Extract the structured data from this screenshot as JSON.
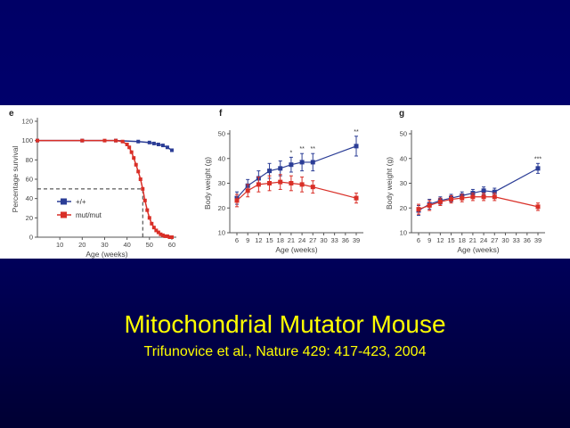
{
  "slide": {
    "title": "Mitochondrial Mutator Mouse",
    "subtitle": "Trifunovice et al., Nature 429: 417-423, 2004"
  },
  "colors": {
    "wildtype": "#2b3d96",
    "mutant": "#d92f27",
    "title": "#ffff00"
  },
  "chart_data": [
    {
      "panel": "e",
      "type": "line",
      "xlabel": "Age (weeks)",
      "ylabel": "Percentage survival",
      "xlim": [
        0,
        62
      ],
      "ylim": [
        0,
        120
      ],
      "xticks": [
        10,
        20,
        30,
        40,
        50,
        60
      ],
      "yticks": [
        0,
        20,
        40,
        60,
        80,
        100,
        120
      ],
      "legend_position": "bottom-left",
      "reference_line": {
        "y": 50,
        "x_at": 47
      },
      "series": [
        {
          "name": "+/+",
          "color": "#2b3d96",
          "x": [
            0,
            20,
            35,
            45,
            50,
            52,
            54,
            56,
            58,
            60
          ],
          "y": [
            100,
            100,
            100,
            99,
            98,
            97,
            96,
            95,
            93,
            90
          ]
        },
        {
          "name": "mut/mut",
          "color": "#d92f27",
          "x": [
            0,
            20,
            30,
            35,
            38,
            40,
            41,
            42,
            43,
            44,
            45,
            46,
            47,
            48,
            49,
            50,
            51,
            52,
            53,
            54,
            55,
            56,
            57,
            58,
            59,
            60
          ],
          "y": [
            100,
            100,
            100,
            100,
            99,
            96,
            93,
            88,
            82,
            75,
            68,
            60,
            50,
            38,
            28,
            20,
            14,
            10,
            7,
            5,
            3,
            2,
            1,
            1,
            0,
            0
          ]
        }
      ]
    },
    {
      "panel": "f",
      "type": "line",
      "xlabel": "Age (weeks)",
      "ylabel": "Body weight  (g)",
      "categories": [
        "6",
        "9",
        "12",
        "15",
        "18",
        "21",
        "24",
        "27",
        "30",
        "33",
        "36",
        "39"
      ],
      "ylim": [
        10,
        50
      ],
      "yticks": [
        10,
        20,
        30,
        40,
        50
      ],
      "annotations": [
        {
          "x": "21",
          "text": "*"
        },
        {
          "x": "24",
          "text": "**"
        },
        {
          "x": "27",
          "text": "**"
        },
        {
          "x": "39",
          "text": "**"
        }
      ],
      "series": [
        {
          "name": "",
          "color": "#2b3d96",
          "x": [
            "6",
            "9",
            "12",
            "15",
            "18",
            "21",
            "24",
            "27",
            "39"
          ],
          "y": [
            24,
            29,
            32,
            35,
            36,
            37.5,
            38.5,
            38.5,
            45
          ],
          "err": [
            2.5,
            2.5,
            3,
            3,
            3,
            3,
            3.5,
            3.5,
            4
          ]
        },
        {
          "name": "",
          "color": "#d92f27",
          "x": [
            "6",
            "9",
            "12",
            "15",
            "18",
            "21",
            "24",
            "27",
            "39"
          ],
          "y": [
            23,
            27,
            29.5,
            30,
            30.5,
            30,
            29.5,
            28.5,
            24
          ],
          "err": [
            2.5,
            2.5,
            3,
            3,
            3,
            3,
            3,
            2.5,
            2
          ]
        }
      ]
    },
    {
      "panel": "g",
      "type": "line",
      "xlabel": "Age (weeks)",
      "ylabel": "Body weight  (g)",
      "categories": [
        "6",
        "9",
        "12",
        "15",
        "18",
        "21",
        "24",
        "27",
        "30",
        "33",
        "36",
        "39"
      ],
      "ylim": [
        10,
        50
      ],
      "yticks": [
        10,
        20,
        30,
        40,
        50
      ],
      "annotations": [
        {
          "x": "39",
          "text": "***"
        }
      ],
      "series": [
        {
          "name": "",
          "color": "#2b3d96",
          "x": [
            "6",
            "9",
            "12",
            "15",
            "18",
            "21",
            "24",
            "27",
            "39"
          ],
          "y": [
            19,
            21.5,
            23,
            24,
            25,
            26,
            27,
            26.5,
            36
          ],
          "err": [
            2,
            2,
            1.5,
            1.5,
            1.5,
            1.5,
            1.5,
            1.5,
            2
          ]
        },
        {
          "name": "",
          "color": "#d92f27",
          "x": [
            "6",
            "9",
            "12",
            "15",
            "18",
            "21",
            "24",
            "27",
            "39"
          ],
          "y": [
            19.5,
            21,
            22.5,
            23.5,
            24,
            24.5,
            24.5,
            24.5,
            20.5
          ],
          "err": [
            2,
            2,
            1.5,
            1.5,
            1.5,
            1.5,
            1.5,
            1.5,
            1.5
          ]
        }
      ]
    }
  ]
}
